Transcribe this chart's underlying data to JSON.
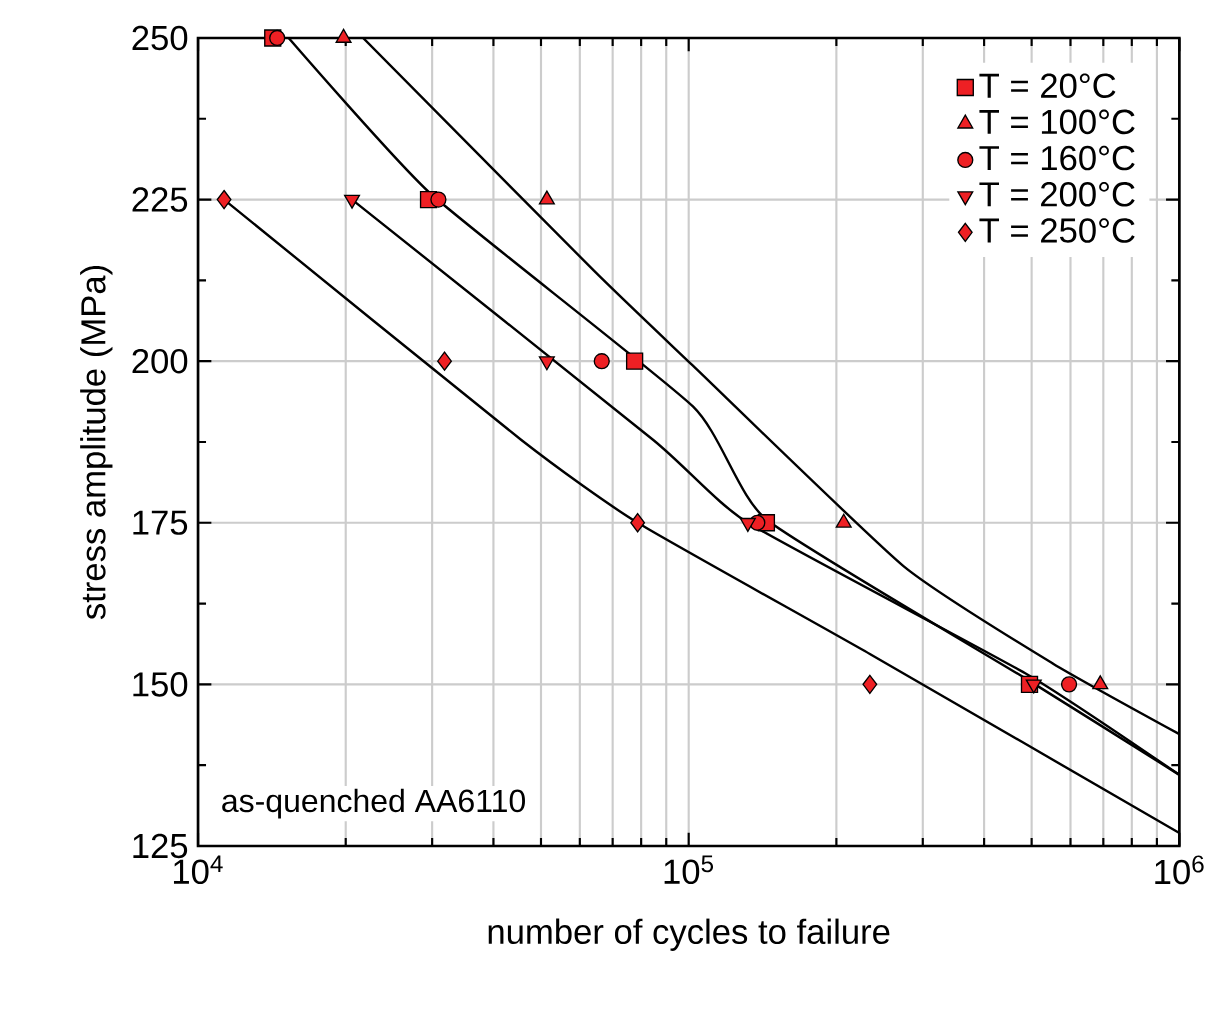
{
  "chart_data": {
    "type": "scatter",
    "xlabel": "number of cycles to failure",
    "ylabel": "stress amplitude (MPa)",
    "log": "x",
    "xlim": [
      10000,
      1000000
    ],
    "ylim": [
      125,
      250
    ],
    "xticks": [
      {
        "value": 10000,
        "label": "10$^{4}$"
      },
      {
        "value": 100000,
        "label": "10$^{5}$"
      },
      {
        "value": 1000000,
        "label": "10$^{6}$"
      }
    ],
    "yticks": [
      125,
      150,
      175,
      200,
      225,
      250
    ],
    "grid": true,
    "legend": "top right",
    "annotations": [
      "as-quenched AA6110"
    ],
    "series": [
      {
        "name": "T = 20°C",
        "marker": "square",
        "color": "#ee2024",
        "x": [
          14200,
          29500,
          77600,
          144000,
          495000
        ],
        "values": [
          250,
          225,
          200,
          175,
          150
        ]
      },
      {
        "name": "T = 100°C",
        "marker": "triangle",
        "color": "#ee2024",
        "x": [
          19800,
          51400,
          207000,
          690000
        ],
        "values": [
          250,
          225,
          175,
          150
        ]
      },
      {
        "name": "T = 160°C",
        "marker": "circle",
        "color": "#ee2024",
        "x": [
          14500,
          30900,
          66500,
          138000,
          596000
        ],
        "values": [
          250,
          225,
          200,
          175,
          150
        ]
      },
      {
        "name": "T = 200°C",
        "marker": "triangle down",
        "color": "#ee2024",
        "x": [
          20600,
          51400,
          132000,
          505000
        ],
        "values": [
          225,
          200,
          175,
          150
        ]
      },
      {
        "name": "T = 250°C",
        "marker": "diamond",
        "color": "#ee2024",
        "x": [
          11300,
          31800,
          78700,
          234000
        ],
        "values": [
          225,
          200,
          175,
          150
        ]
      },
      {
        "type": "line",
        "color": "#000000",
        "x": [
          21700,
          64100,
          102000,
          274000,
          553000,
          1000000
        ],
        "values": [
          250,
          214,
          199.3,
          168.3,
          153.2,
          142.3
        ]
      },
      {
        "type": "line",
        "color": "#000000",
        "x": [
          15300,
          29800,
          102000,
          144000,
          491000,
          1000000
        ],
        "values": [
          250,
          225.9,
          193,
          175.5,
          150.7,
          136
        ]
      },
      {
        "type": "line",
        "color": "#000000",
        "x": [
          20600,
          84700,
          132000,
          491000,
          1000000
        ],
        "values": [
          225,
          187.8,
          175,
          151.5,
          136
        ]
      },
      {
        "type": "line",
        "color": "#000000",
        "x": [
          11300,
          45600,
          78700,
          234000,
          1000000
        ],
        "values": [
          225,
          187.8,
          175,
          154.7,
          127
        ]
      }
    ]
  }
}
